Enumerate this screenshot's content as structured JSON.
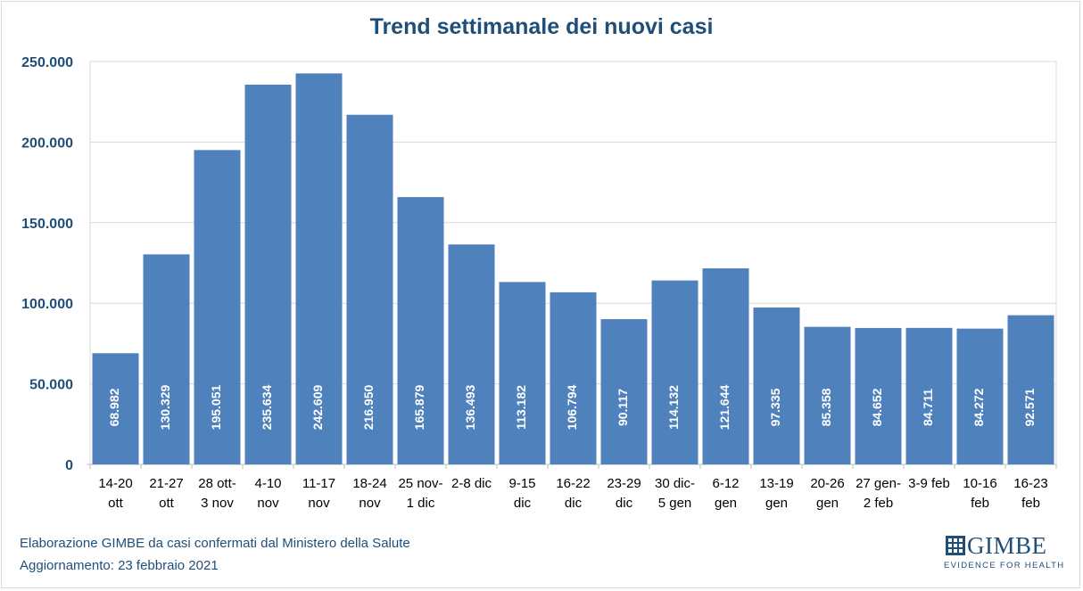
{
  "title": "Trend settimanale dei nuovi casi",
  "footer": {
    "line1": "Elaborazione GIMBE da casi confermati dal Ministero della Salute",
    "line2": "Aggiornamento:  23 febbraio 2021"
  },
  "logo": {
    "word": "GIMBE",
    "tagline": "EVIDENCE FOR HEALTH"
  },
  "colors": {
    "bar": "#4f81bd",
    "title": "#1f4e79",
    "axis_text": "#1f4e79",
    "grid": "#d9d9d9"
  },
  "chart_data": {
    "type": "bar",
    "title": "Trend settimanale dei nuovi casi",
    "xlabel": "",
    "ylabel": "",
    "ylim": [
      0,
      250000
    ],
    "yticks": [
      0,
      50000,
      100000,
      150000,
      200000,
      250000
    ],
    "ytick_labels": [
      "0",
      "50.000",
      "100.000",
      "150.000",
      "200.000",
      "250.000"
    ],
    "grid": true,
    "categories": [
      [
        "14-20",
        "ott"
      ],
      [
        "21-27",
        "ott"
      ],
      [
        "28 ott-",
        "3 nov"
      ],
      [
        "4-10",
        "nov"
      ],
      [
        "11-17",
        "nov"
      ],
      [
        "18-24",
        "nov"
      ],
      [
        "25 nov-",
        "1 dic"
      ],
      [
        "2-8 dic",
        ""
      ],
      [
        "9-15",
        "dic"
      ],
      [
        "16-22",
        "dic"
      ],
      [
        "23-29",
        "dic"
      ],
      [
        "30 dic-",
        "5 gen"
      ],
      [
        "6-12",
        "gen"
      ],
      [
        "13-19",
        "gen"
      ],
      [
        "20-26",
        "gen"
      ],
      [
        "27 gen-",
        "2 feb"
      ],
      [
        "3-9 feb",
        ""
      ],
      [
        "10-16",
        "feb"
      ],
      [
        "16-23",
        "feb"
      ]
    ],
    "values": [
      68982,
      130329,
      195051,
      235634,
      242609,
      216950,
      165879,
      136493,
      113182,
      106794,
      90117,
      114132,
      121644,
      97335,
      85358,
      84652,
      84711,
      84272,
      92571
    ],
    "data_labels": [
      "68.982",
      "130.329",
      "195.051",
      "235.634",
      "242.609",
      "216.950",
      "165.879",
      "136.493",
      "113.182",
      "106.794",
      "90.117",
      "114.132",
      "121.644",
      "97.335",
      "85.358",
      "84.652",
      "84.711",
      "84.272",
      "92.571"
    ]
  }
}
